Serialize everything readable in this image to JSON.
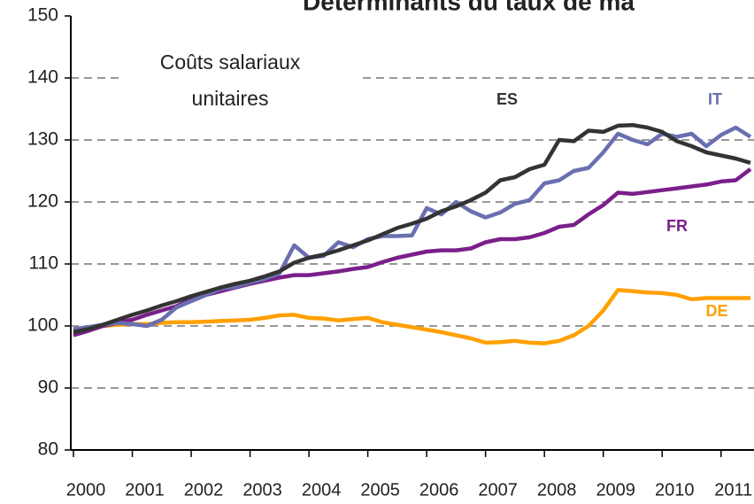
{
  "chart_data": {
    "type": "line",
    "title": "Déterminants du taux de ma",
    "annotation": [
      "Coûts salariaux",
      "unitaires"
    ],
    "x": [
      2000,
      2000.25,
      2000.5,
      2000.75,
      2001,
      2001.25,
      2001.5,
      2001.75,
      2002,
      2002.25,
      2002.5,
      2002.75,
      2003,
      2003.25,
      2003.5,
      2003.75,
      2004,
      2004.25,
      2004.5,
      2004.75,
      2005,
      2005.25,
      2005.5,
      2005.75,
      2006,
      2006.25,
      2006.5,
      2006.75,
      2007,
      2007.25,
      2007.5,
      2007.75,
      2008,
      2008.25,
      2008.5,
      2008.75,
      2009,
      2009.25,
      2009.5,
      2009.75,
      2010,
      2010.25,
      2010.5,
      2010.75,
      2011,
      2011.25,
      2011.5
    ],
    "series": [
      {
        "name": "ES",
        "color": "#333333",
        "values": [
          99,
          99.5,
          100.2,
          101,
          101.8,
          102.5,
          103.3,
          104,
          104.8,
          105.5,
          106.2,
          106.8,
          107.3,
          108,
          108.8,
          110.2,
          111,
          111.5,
          112.2,
          113,
          113.8,
          114.8,
          115.8,
          116.5,
          117.3,
          118.5,
          119.3,
          120.3,
          121.5,
          123.5,
          124,
          125.3,
          126,
          130,
          129.8,
          131.5,
          131.3,
          132.3,
          132.4,
          132,
          131.3,
          129.8,
          129,
          128,
          127.5,
          127,
          126.3
        ]
      },
      {
        "name": "IT",
        "color": "#6a6fb0",
        "values": [
          99.5,
          99.8,
          100.2,
          100.5,
          100.3,
          100,
          101,
          103,
          104,
          105,
          106,
          106.3,
          107,
          107.6,
          108.5,
          113,
          111,
          111.3,
          113.5,
          112.7,
          114,
          114.5,
          114.5,
          114.6,
          119,
          118,
          120,
          118.5,
          117.5,
          118.3,
          119.7,
          120.3,
          123,
          123.5,
          125,
          125.5,
          128,
          131,
          130,
          129.3,
          131,
          130.5,
          131,
          129,
          130.8,
          132,
          130.5
        ]
      },
      {
        "name": "FR",
        "color": "#7b1f8a",
        "values": [
          98.5,
          99.2,
          100,
          100.5,
          101,
          101.8,
          102.5,
          103.2,
          104.3,
          105,
          105.6,
          106.2,
          106.8,
          107.3,
          107.8,
          108.2,
          108.2,
          108.5,
          108.8,
          109.2,
          109.5,
          110.3,
          111,
          111.5,
          112,
          112.2,
          112.2,
          112.5,
          113.5,
          114,
          114,
          114.3,
          115,
          116,
          116.3,
          118,
          119.5,
          121.5,
          121.3,
          121.6,
          121.9,
          122.2,
          122.5,
          122.8,
          123.3,
          123.5,
          125.3
        ]
      },
      {
        "name": "DE",
        "color": "#ffa000",
        "values": [
          99,
          99.5,
          100,
          100.2,
          100.3,
          100.3,
          100.5,
          100.6,
          100.6,
          100.7,
          100.8,
          100.9,
          101,
          101.3,
          101.7,
          101.8,
          101.3,
          101.2,
          100.9,
          101.1,
          101.3,
          100.6,
          100.2,
          99.8,
          99.4,
          99,
          98.5,
          98,
          97.3,
          97.4,
          97.6,
          97.3,
          97.2,
          97.6,
          98.5,
          100,
          102.5,
          105.8,
          105.6,
          105.4,
          105.3,
          105,
          104.3,
          104.5,
          104.5,
          104.5,
          104.5
        ]
      }
    ],
    "xlim": [
      2000,
      2011.56
    ],
    "xticks": [
      2000,
      2001,
      2002,
      2003,
      2004,
      2005,
      2006,
      2007,
      2008,
      2009,
      2010,
      2011
    ],
    "ylim": [
      80,
      150
    ],
    "yticks": [
      80,
      90,
      100,
      110,
      120,
      130,
      140,
      150
    ],
    "grid": true
  }
}
